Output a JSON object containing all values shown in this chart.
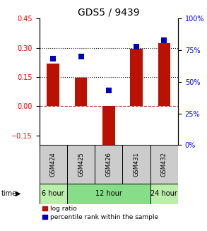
{
  "title": "GDS5 / 9439",
  "samples": [
    "GSM424",
    "GSM425",
    "GSM426",
    "GSM431",
    "GSM432"
  ],
  "log_ratio": [
    0.22,
    0.145,
    -0.2,
    0.295,
    0.325
  ],
  "percentile_rank": [
    68,
    70,
    43,
    78,
    83
  ],
  "ylim_left": [
    -0.2,
    0.45
  ],
  "ylim_right": [
    0,
    100
  ],
  "yticks_left": [
    -0.15,
    0,
    0.15,
    0.3,
    0.45
  ],
  "yticks_right": [
    0,
    25,
    50,
    75,
    100
  ],
  "hlines": [
    0.0,
    0.15,
    0.3
  ],
  "hline_styles": [
    "dashed",
    "dotted",
    "dotted"
  ],
  "hline_colors": [
    "#cc3333",
    "#000000",
    "#000000"
  ],
  "bar_color": "#bb1100",
  "dot_color": "#0000bb",
  "time_groups": [
    {
      "label": "6 hour",
      "samples": [
        "GSM424"
      ],
      "color": "#bbeeaa"
    },
    {
      "label": "12 hour",
      "samples": [
        "GSM425",
        "GSM426",
        "GSM431"
      ],
      "color": "#88dd88"
    },
    {
      "label": "24 hour",
      "samples": [
        "GSM432"
      ],
      "color": "#bbeeaa"
    }
  ],
  "bar_width": 0.45,
  "dot_size": 30,
  "title_fontsize": 10,
  "tick_fontsize": 7,
  "sample_fontsize": 6,
  "time_fontsize": 7,
  "legend_fontsize": 6.5
}
